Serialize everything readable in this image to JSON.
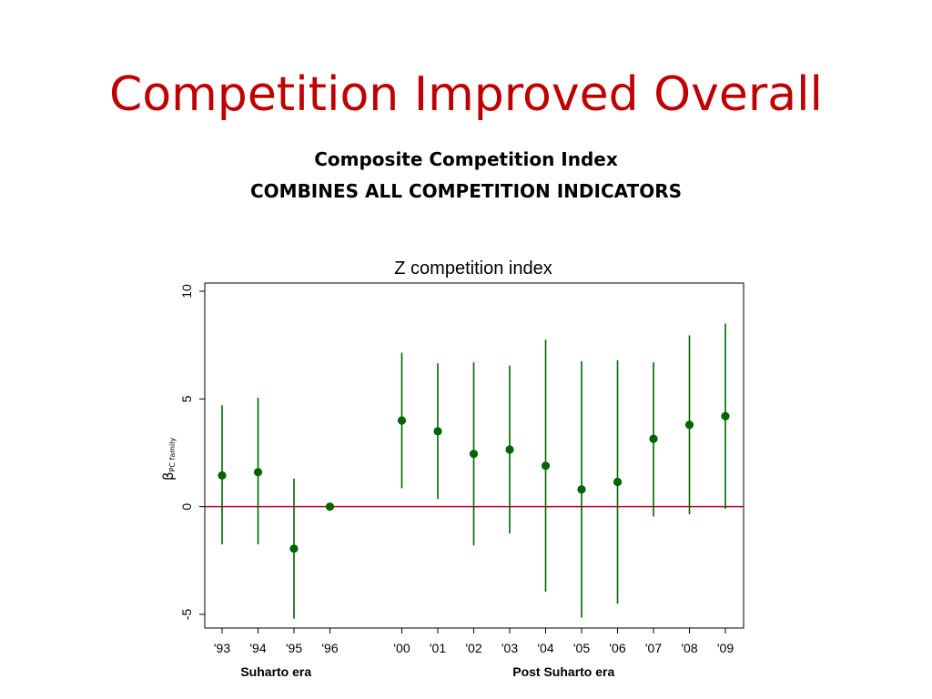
{
  "slide": {
    "title": "Competition Improved Overall",
    "subtitle_line1": "Composite Competition Index",
    "subtitle_line2": "COMBINES ALL COMPETITION INDICATORS",
    "title_color": "#c00000"
  },
  "chart_data": {
    "type": "scatter",
    "title": "Z competition index",
    "ylabel_symbol": "β",
    "ylabel_subscript": "PC family",
    "ylim": [
      -5.5,
      10.5
    ],
    "yticks": [
      "10",
      "5",
      "0",
      "-5"
    ],
    "ytick_values": [
      10,
      5,
      0,
      -5
    ],
    "reference_line": 0,
    "grid": false,
    "series": [
      {
        "points": [
          {
            "x": "'93",
            "y": 1.45,
            "low": -1.75,
            "high": 4.7
          },
          {
            "x": "'94",
            "y": 1.6,
            "low": -1.75,
            "high": 5.05
          },
          {
            "x": "'95",
            "y": -1.95,
            "low": -5.2,
            "high": 1.3
          },
          {
            "x": "'96",
            "y": 0.0,
            "low": 0.0,
            "high": 0.0
          },
          {
            "x": "'00",
            "y": 4.0,
            "low": 0.85,
            "high": 7.15
          },
          {
            "x": "'01",
            "y": 3.5,
            "low": 0.35,
            "high": 6.65
          },
          {
            "x": "'02",
            "y": 2.45,
            "low": -1.8,
            "high": 6.7
          },
          {
            "x": "'03",
            "y": 2.65,
            "low": -1.25,
            "high": 6.55
          },
          {
            "x": "'04",
            "y": 1.9,
            "low": -3.95,
            "high": 7.75
          },
          {
            "x": "'05",
            "y": 0.8,
            "low": -5.15,
            "high": 6.75
          },
          {
            "x": "'06",
            "y": 1.15,
            "low": -4.5,
            "high": 6.8
          },
          {
            "x": "'07",
            "y": 3.15,
            "low": -0.45,
            "high": 6.7
          },
          {
            "x": "'08",
            "y": 3.8,
            "low": -0.35,
            "high": 7.95
          },
          {
            "x": "'09",
            "y": 4.2,
            "low": -0.1,
            "high": 8.5
          }
        ]
      }
    ],
    "x_positions": [
      1,
      2,
      3,
      4,
      6,
      7,
      8,
      9,
      10,
      11,
      12,
      13,
      14,
      15
    ],
    "xlim": [
      0.5,
      15.5
    ],
    "groups": [
      {
        "label": "Suharto era",
        "center": 2.5
      },
      {
        "label": "Post Suharto era",
        "center": 10.5
      }
    ],
    "colors": {
      "point": "#006400",
      "errorbar": "#006400",
      "reference": "#c8002d"
    }
  }
}
